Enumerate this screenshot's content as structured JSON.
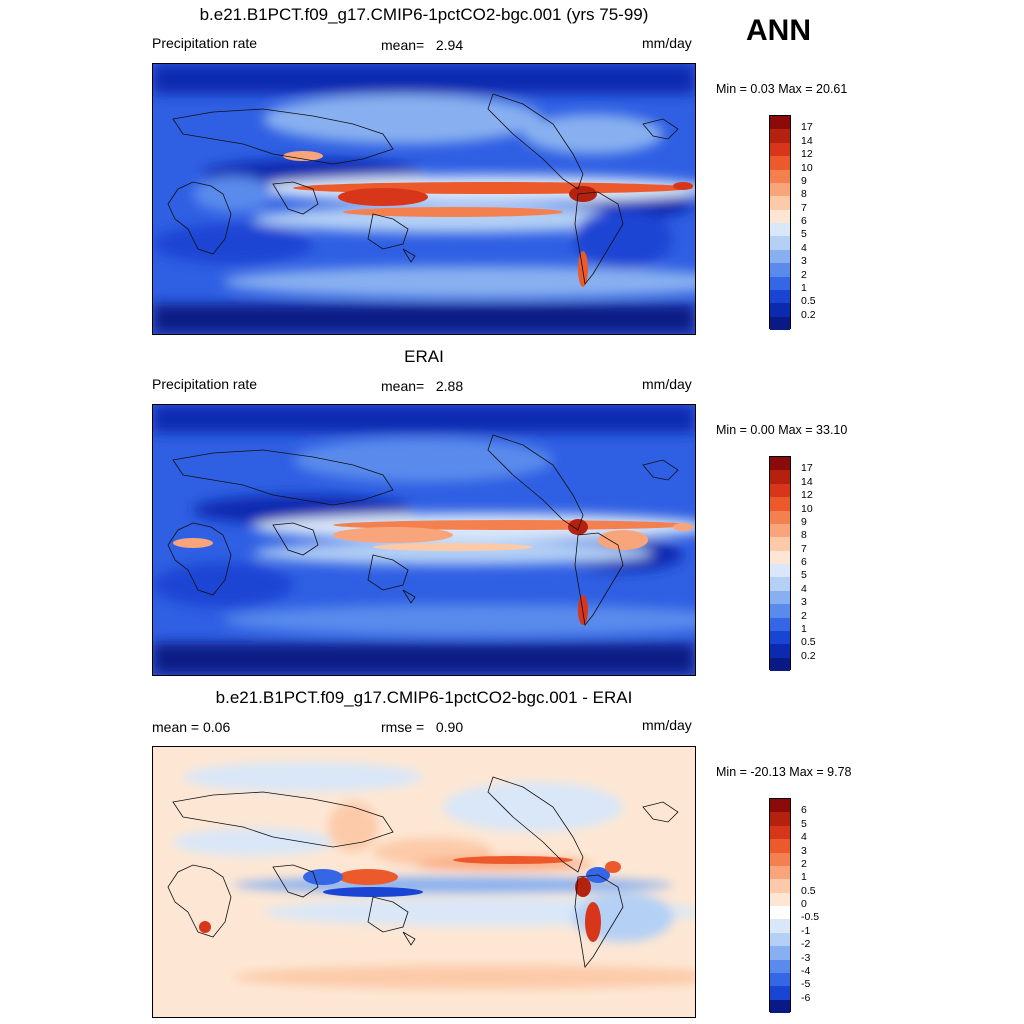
{
  "season": "ANN",
  "panels": [
    {
      "title": "b.e21.B1PCT.f09_g17.CMIP6-1pctCO2-bgc.001 (yrs 75-99)",
      "left": "Precipitation rate",
      "center_label": "mean=",
      "center_value": "2.94",
      "units": "mm/day",
      "minmax": "Min =   0.03 Max =  20.61"
    },
    {
      "title": "ERAI",
      "left": "Precipitation rate",
      "center_label": "mean=",
      "center_value": "2.88",
      "units": "mm/day",
      "minmax": "Min =   0.00 Max =  33.10"
    },
    {
      "title": "b.e21.B1PCT.f09_g17.CMIP6-1pctCO2-bgc.001 - ERAI",
      "left": "mean =   0.06",
      "center_label": "rmse =",
      "center_value": "0.90",
      "units": "mm/day",
      "minmax": "Min = -20.13 Max =   9.78"
    }
  ],
  "colorbar_precip": {
    "labels": [
      "17",
      "14",
      "12",
      "10",
      "9",
      "8",
      "7",
      "6",
      "5",
      "4",
      "3",
      "2",
      "1",
      "0.5",
      "0.2"
    ],
    "colors": [
      "#8b0a0a",
      "#b5210f",
      "#d8361a",
      "#ec5a2c",
      "#f5804f",
      "#f9a57c",
      "#fccaa9",
      "#fde7d4",
      "#d9e7f8",
      "#b4d0f5",
      "#88b0f0",
      "#5a8bec",
      "#3566e6",
      "#1a45d4",
      "#0c2ab0",
      "#0a1a85"
    ]
  },
  "colorbar_diff": {
    "labels": [
      "6",
      "5",
      "4",
      "3",
      "2",
      "1",
      "0.5",
      "0",
      "-0.5",
      "-1",
      "-2",
      "-3",
      "-4",
      "-5",
      "-6"
    ],
    "colors": [
      "#8b0a0a",
      "#b5210f",
      "#d8361a",
      "#ec5a2c",
      "#f5804f",
      "#f9a57c",
      "#fccaa9",
      "#fde7d4",
      "#ffffff",
      "#d9e7f8",
      "#b4d0f5",
      "#88b0f0",
      "#5a8bec",
      "#3566e6",
      "#1a45d4",
      "#0a1a85"
    ]
  }
}
